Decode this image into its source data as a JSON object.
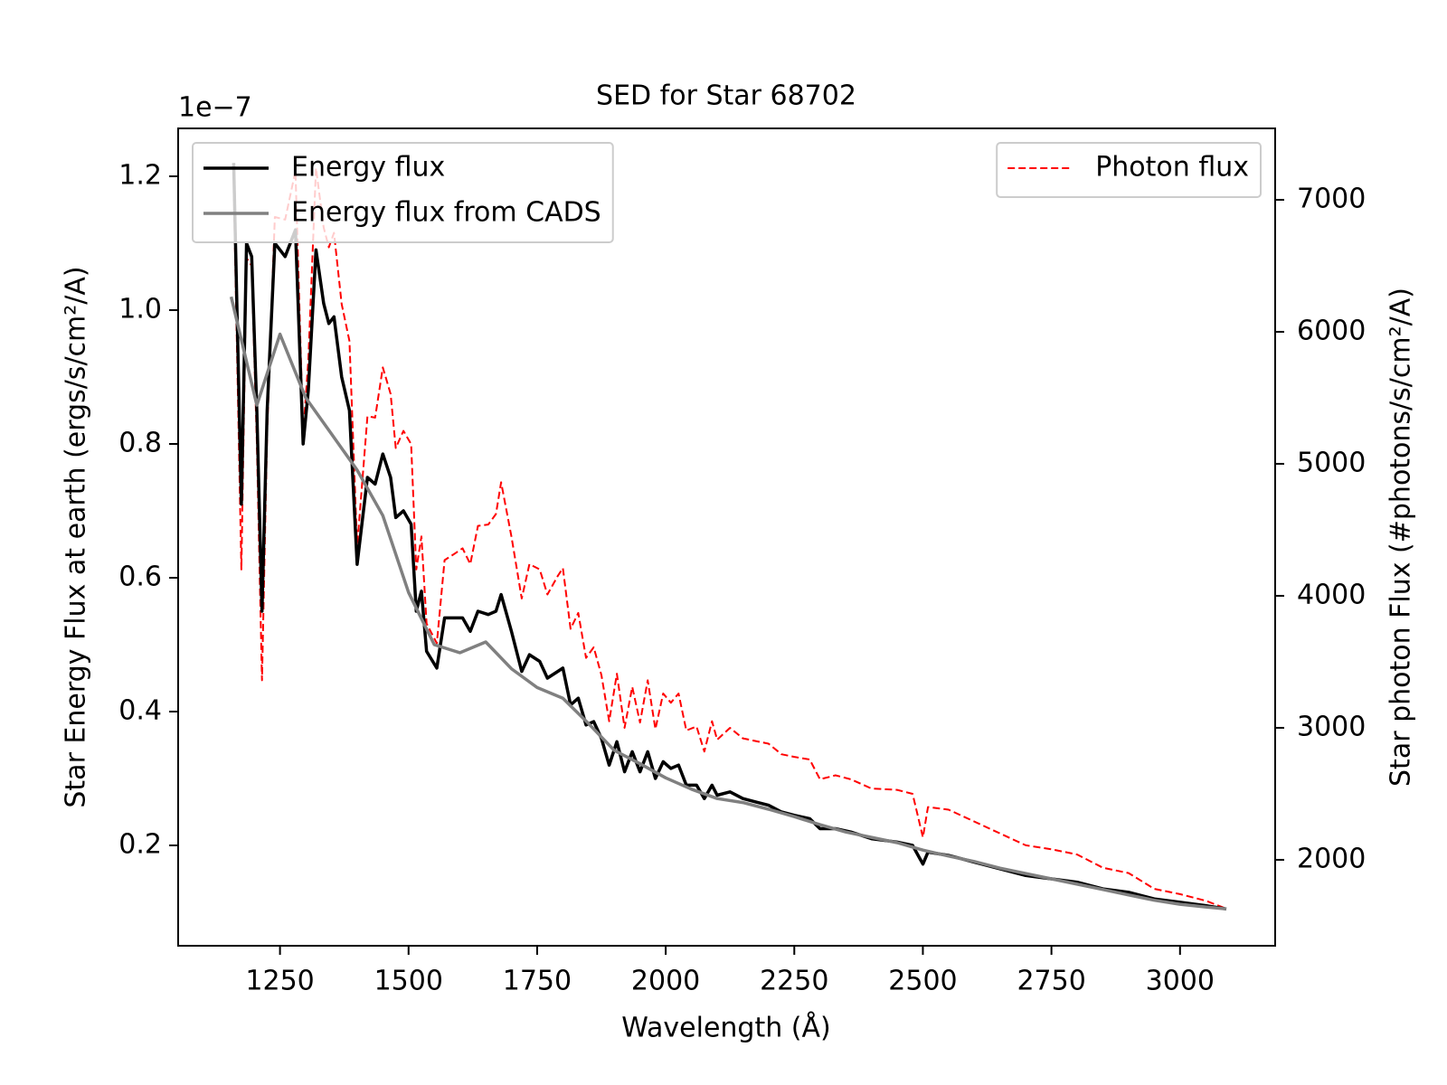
{
  "chart_data": {
    "type": "line",
    "title": "SED for Star 68702",
    "x_label": "Wavelength (Å)",
    "y_label": "Star Energy Flux at earth (ergs/s/cm²/A)",
    "y2_label": "Star photon Flux (#photons/s/cm²/A)",
    "y_offset_label": "1e−7",
    "xlim": [
      1052,
      3185
    ],
    "xticks": [
      1250,
      1500,
      1750,
      2000,
      2250,
      2500,
      2750,
      3000
    ],
    "ylim": [
      0.05,
      1.2716
    ],
    "yticks": [
      0.2,
      0.4,
      0.6,
      0.8,
      1.0,
      1.2
    ],
    "y2lim": [
      1349,
      7541
    ],
    "y2ticks": [
      2000,
      3000,
      4000,
      5000,
      6000,
      7000
    ],
    "legend": "upper left",
    "legend_y2": "upper right",
    "grid": false,
    "series": [
      {
        "name": "Energy flux",
        "color": "#000000",
        "style": "solid",
        "x": [
          1160,
          1175,
          1185,
          1195,
          1205,
          1215,
          1225,
          1240,
          1260,
          1280,
          1295,
          1305,
          1320,
          1335,
          1345,
          1355,
          1370,
          1385,
          1400,
          1420,
          1435,
          1450,
          1465,
          1475,
          1490,
          1505,
          1515,
          1525,
          1535,
          1555,
          1570,
          1590,
          1605,
          1620,
          1635,
          1655,
          1670,
          1680,
          1700,
          1720,
          1735,
          1755,
          1770,
          1790,
          1800,
          1815,
          1830,
          1845,
          1860,
          1875,
          1890,
          1905,
          1920,
          1935,
          1950,
          1965,
          1980,
          1995,
          2010,
          2025,
          2040,
          2060,
          2075,
          2090,
          2100,
          2125,
          2150,
          2175,
          2200,
          2225,
          2250,
          2280,
          2300,
          2330,
          2360,
          2400,
          2450,
          2480,
          2500,
          2510,
          2550,
          2600,
          2650,
          2700,
          2750,
          2800,
          2850,
          2900,
          2950,
          3000,
          3050,
          3090
        ],
        "values": [
          1.22,
          0.71,
          1.1,
          1.08,
          0.85,
          0.55,
          0.85,
          1.1,
          1.08,
          1.12,
          0.8,
          0.88,
          1.09,
          1.01,
          0.98,
          0.99,
          0.9,
          0.85,
          0.62,
          0.75,
          0.74,
          0.785,
          0.75,
          0.69,
          0.7,
          0.68,
          0.55,
          0.58,
          0.49,
          0.465,
          0.54,
          0.54,
          0.54,
          0.52,
          0.55,
          0.545,
          0.55,
          0.575,
          0.52,
          0.46,
          0.485,
          0.475,
          0.45,
          0.46,
          0.465,
          0.41,
          0.42,
          0.38,
          0.385,
          0.36,
          0.32,
          0.355,
          0.31,
          0.34,
          0.31,
          0.34,
          0.3,
          0.325,
          0.315,
          0.32,
          0.29,
          0.29,
          0.27,
          0.29,
          0.275,
          0.28,
          0.27,
          0.265,
          0.26,
          0.25,
          0.245,
          0.24,
          0.225,
          0.225,
          0.22,
          0.21,
          0.205,
          0.2,
          0.172,
          0.19,
          0.185,
          0.175,
          0.165,
          0.155,
          0.15,
          0.145,
          0.135,
          0.13,
          0.12,
          0.115,
          0.11,
          0.105
        ]
      },
      {
        "name": "Energy flux from CADS",
        "color": "#808080",
        "style": "solid",
        "x": [
          1155,
          1205,
          1250,
          1300,
          1350,
          1400,
          1450,
          1500,
          1550,
          1600,
          1650,
          1700,
          1750,
          1800,
          1850,
          1900,
          1950,
          2000,
          2050,
          2100,
          2150,
          2200,
          2250,
          2300,
          2350,
          2400,
          2450,
          2500,
          2550,
          2600,
          2650,
          2700,
          2750,
          2800,
          2850,
          2900,
          2950,
          3000,
          3050,
          3090
        ],
        "values": [
          1.02,
          0.858,
          0.964,
          0.869,
          0.815,
          0.761,
          0.693,
          0.578,
          0.5,
          0.488,
          0.504,
          0.464,
          0.436,
          0.42,
          0.382,
          0.342,
          0.322,
          0.301,
          0.284,
          0.27,
          0.264,
          0.254,
          0.243,
          0.231,
          0.22,
          0.212,
          0.204,
          0.193,
          0.184,
          0.176,
          0.166,
          0.158,
          0.15,
          0.142,
          0.134,
          0.126,
          0.118,
          0.112,
          0.108,
          0.105
        ]
      },
      {
        "name": "Photon flux",
        "color": "#ff0000",
        "style": "dashed",
        "axis": "y2",
        "x": [
          1160,
          1175,
          1185,
          1195,
          1205,
          1215,
          1225,
          1240,
          1260,
          1280,
          1295,
          1305,
          1320,
          1335,
          1345,
          1355,
          1370,
          1385,
          1400,
          1420,
          1435,
          1450,
          1465,
          1475,
          1490,
          1505,
          1515,
          1525,
          1535,
          1555,
          1570,
          1590,
          1605,
          1620,
          1635,
          1655,
          1670,
          1680,
          1700,
          1720,
          1735,
          1755,
          1770,
          1790,
          1800,
          1815,
          1830,
          1845,
          1860,
          1875,
          1890,
          1905,
          1920,
          1935,
          1950,
          1965,
          1980,
          1995,
          2010,
          2025,
          2040,
          2060,
          2075,
          2090,
          2100,
          2125,
          2150,
          2175,
          2200,
          2225,
          2250,
          2280,
          2300,
          2330,
          2360,
          2400,
          2450,
          2480,
          2500,
          2510,
          2550,
          2600,
          2650,
          2700,
          2750,
          2800,
          2850,
          2900,
          2950,
          3000,
          3050,
          3090
        ],
        "values": [
          7130,
          4200,
          6560,
          6500,
          5160,
          3360,
          5240,
          6870,
          6850,
          7220,
          5220,
          5780,
          7240,
          6790,
          6640,
          6750,
          6210,
          5930,
          4370,
          5360,
          5350,
          5730,
          5530,
          5120,
          5250,
          5150,
          4200,
          4450,
          3790,
          3640,
          4270,
          4320,
          4360,
          4240,
          4530,
          4540,
          4620,
          4860,
          4450,
          3980,
          4240,
          4200,
          4010,
          4150,
          4210,
          3750,
          3870,
          3530,
          3610,
          3400,
          3050,
          3410,
          3000,
          3310,
          3040,
          3360,
          2990,
          3260,
          3190,
          3260,
          2980,
          3010,
          2820,
          3050,
          2910,
          3000,
          2920,
          2900,
          2880,
          2800,
          2780,
          2760,
          2610,
          2640,
          2610,
          2540,
          2530,
          2500,
          2170,
          2400,
          2380,
          2290,
          2200,
          2110,
          2080,
          2040,
          1940,
          1900,
          1780,
          1740,
          1690,
          1630
        ]
      }
    ]
  }
}
